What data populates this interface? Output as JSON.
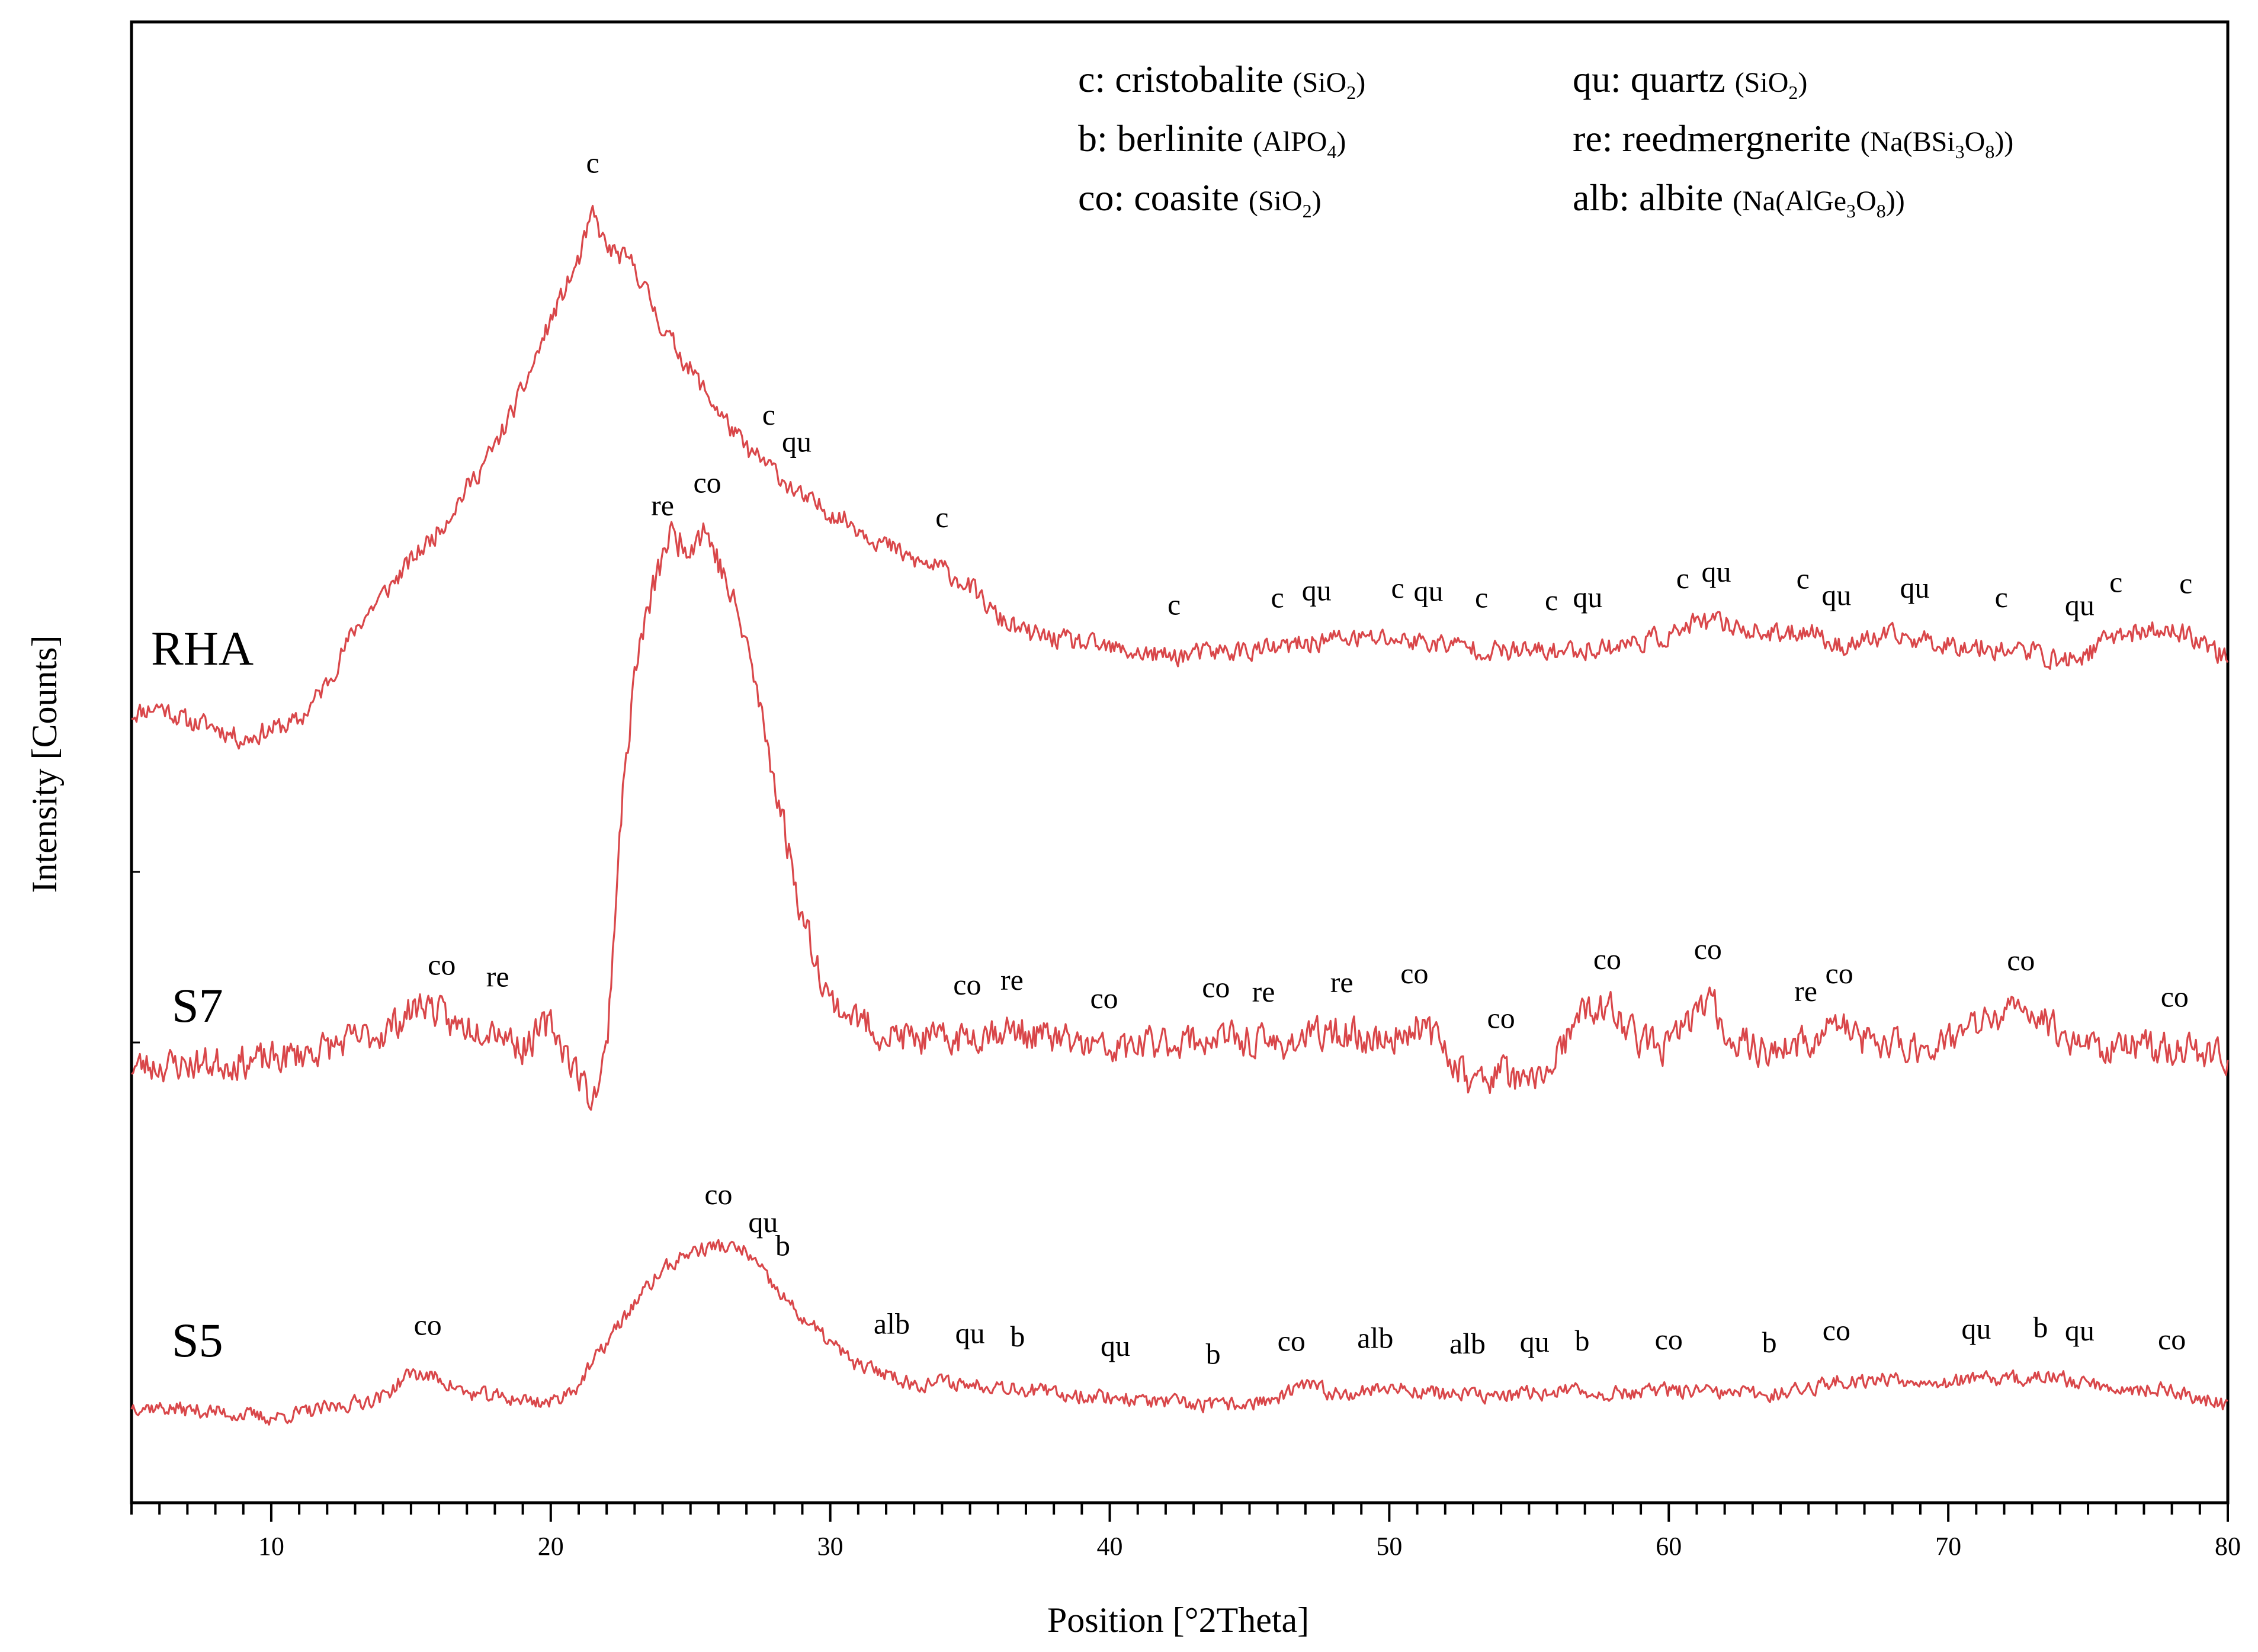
{
  "chart_data": {
    "type": "line",
    "title": "",
    "xlabel": "Position [°2Theta]",
    "ylabel": "Intensity [Counts]",
    "xlim": [
      5,
      80
    ],
    "xticks": [
      10,
      20,
      30,
      40,
      50,
      60,
      70,
      80
    ],
    "y_ticks_shown": false,
    "grid": false,
    "line_color": "#d9474a",
    "legend_entries": [
      {
        "abbr": "c",
        "name": "cristobalite",
        "formula": "(SiO",
        "sub": "2",
        "tail": ")"
      },
      {
        "abbr": "b",
        "name": "berlinite",
        "formula": "(AlPO",
        "sub": "4",
        "tail": ")"
      },
      {
        "abbr": "co",
        "name": "coasite",
        "formula": "(SiO",
        "sub": "2",
        "tail": ")"
      },
      {
        "abbr": "qu",
        "name": "quartz",
        "formula": "(SiO",
        "sub": "2",
        "tail": ")"
      },
      {
        "abbr": "re",
        "name": "reedmergnerite",
        "formula": "(Na(BSi",
        "sub": "3",
        "mid": "O",
        "sub2": "8",
        "tail": "))"
      },
      {
        "abbr": "alb",
        "name": "albite",
        "formula": "(Na(AlGe",
        "sub": "3",
        "mid": "O",
        "sub2": "8",
        "tail": "))"
      }
    ],
    "series": [
      {
        "name": "RHA",
        "label": "RHA",
        "noise": 0.55,
        "seed": 11,
        "profile": [
          [
            5,
            10.3
          ],
          [
            6,
            10.6
          ],
          [
            7,
            10.0
          ],
          [
            8,
            9.8
          ],
          [
            9,
            9.3
          ],
          [
            10,
            9.7
          ],
          [
            11,
            10.0
          ],
          [
            12,
            11.5
          ],
          [
            13,
            13.6
          ],
          [
            14,
            14.9
          ],
          [
            15,
            16.2
          ],
          [
            16,
            17.4
          ],
          [
            17,
            19.0
          ],
          [
            18,
            20.6
          ],
          [
            19,
            22.8
          ],
          [
            20,
            25.5
          ],
          [
            21,
            27.8
          ],
          [
            21.5,
            29.6
          ],
          [
            22,
            28.3
          ],
          [
            23,
            27.6
          ],
          [
            24,
            25.2
          ],
          [
            25,
            23.6
          ],
          [
            26,
            22.0
          ],
          [
            27,
            20.5
          ],
          [
            28,
            19.7
          ],
          [
            29,
            18.6
          ],
          [
            30,
            18.1
          ],
          [
            31,
            17.5
          ],
          [
            32,
            16.8
          ],
          [
            33,
            16.2
          ],
          [
            34,
            15.9
          ],
          [
            35,
            15.2
          ],
          [
            36,
            14.0
          ],
          [
            37,
            13.4
          ],
          [
            38,
            13.2
          ],
          [
            40,
            12.8
          ],
          [
            42,
            12.5
          ],
          [
            44,
            12.7
          ],
          [
            46,
            12.8
          ],
          [
            48,
            13.2
          ],
          [
            50,
            13.2
          ],
          [
            52,
            13.0
          ],
          [
            54,
            12.7
          ],
          [
            56,
            12.7
          ],
          [
            58,
            12.9
          ],
          [
            60,
            13.3
          ],
          [
            61,
            13.8
          ],
          [
            62,
            13.8
          ],
          [
            63,
            13.5
          ],
          [
            64,
            13.3
          ],
          [
            65,
            13.6
          ],
          [
            66,
            12.9
          ],
          [
            68,
            13.3
          ],
          [
            70,
            13.0
          ],
          [
            72,
            12.8
          ],
          [
            73,
            12.7
          ],
          [
            74,
            12.3
          ],
          [
            75,
            12.6
          ],
          [
            76,
            13.4
          ],
          [
            78,
            13.5
          ],
          [
            79,
            13.2
          ],
          [
            80,
            12.4
          ]
        ],
        "peaks": [
          {
            "x": 21.5,
            "label": "c"
          },
          {
            "x": 27.8,
            "label": "c"
          },
          {
            "x": 28.8,
            "label": "qu"
          },
          {
            "x": 34.0,
            "label": "c"
          },
          {
            "x": 42.3,
            "label": "c"
          },
          {
            "x": 46.0,
            "label": "c"
          },
          {
            "x": 47.4,
            "label": "qu"
          },
          {
            "x": 50.3,
            "label": "c"
          },
          {
            "x": 51.4,
            "label": "qu"
          },
          {
            "x": 53.3,
            "label": "c"
          },
          {
            "x": 55.8,
            "label": "c"
          },
          {
            "x": 57.1,
            "label": "qu"
          },
          {
            "x": 60.5,
            "label": "c"
          },
          {
            "x": 61.7,
            "label": "qu"
          },
          {
            "x": 64.8,
            "label": "c"
          },
          {
            "x": 66.0,
            "label": "qu"
          },
          {
            "x": 68.8,
            "label": "qu"
          },
          {
            "x": 71.9,
            "label": "c"
          },
          {
            "x": 74.7,
            "label": "qu"
          },
          {
            "x": 76.0,
            "label": "c"
          },
          {
            "x": 78.5,
            "label": "c"
          }
        ]
      },
      {
        "name": "S7",
        "label": "S7",
        "noise": 0.75,
        "seed": 23,
        "profile": [
          [
            5,
            6.5
          ],
          [
            8,
            6.6
          ],
          [
            10,
            6.7
          ],
          [
            12,
            7.1
          ],
          [
            14,
            7.6
          ],
          [
            15.5,
            8.6
          ],
          [
            16.5,
            7.8
          ],
          [
            18,
            7.8
          ],
          [
            19,
            7.1
          ],
          [
            20,
            7.9
          ],
          [
            21,
            6.2
          ],
          [
            21.5,
            5.4
          ],
          [
            22,
            7.0
          ],
          [
            22.5,
            14.5
          ],
          [
            23,
            19.2
          ],
          [
            23.5,
            21.3
          ],
          [
            24.2,
            23.6
          ],
          [
            25,
            23.4
          ],
          [
            25.5,
            23.9
          ],
          [
            26,
            22.8
          ],
          [
            27,
            20.2
          ],
          [
            28,
            15.8
          ],
          [
            29,
            11.3
          ],
          [
            30,
            8.6
          ],
          [
            31,
            8.0
          ],
          [
            32,
            7.5
          ],
          [
            34,
            7.3
          ],
          [
            36,
            7.7
          ],
          [
            38,
            7.4
          ],
          [
            40,
            7.0
          ],
          [
            42,
            7.3
          ],
          [
            44,
            7.4
          ],
          [
            46,
            7.2
          ],
          [
            48,
            7.6
          ],
          [
            50,
            7.3
          ],
          [
            51,
            7.9
          ],
          [
            52,
            7.1
          ],
          [
            53,
            5.9
          ],
          [
            54,
            6.4
          ],
          [
            55,
            5.8
          ],
          [
            56,
            6.8
          ],
          [
            57,
            8.3
          ],
          [
            58,
            8.3
          ],
          [
            59,
            7.3
          ],
          [
            60,
            7.1
          ],
          [
            61,
            8.3
          ],
          [
            61.5,
            8.7
          ],
          [
            62,
            7.6
          ],
          [
            63,
            7.1
          ],
          [
            64,
            7.0
          ],
          [
            65,
            7.3
          ],
          [
            66,
            7.9
          ],
          [
            67,
            7.3
          ],
          [
            68,
            7.2
          ],
          [
            69,
            7.1
          ],
          [
            70,
            7.4
          ],
          [
            71,
            7.8
          ],
          [
            72,
            8.2
          ],
          [
            73,
            8.3
          ],
          [
            74,
            7.6
          ],
          [
            75,
            7.2
          ],
          [
            76,
            7.1
          ],
          [
            78,
            7.1
          ],
          [
            80,
            6.8
          ]
        ],
        "peaks": [
          {
            "x": 16.1,
            "label": "co"
          },
          {
            "x": 18.1,
            "label": "re"
          },
          {
            "x": 24.0,
            "label": "re"
          },
          {
            "x": 25.6,
            "label": "co"
          },
          {
            "x": 34.9,
            "label": "co"
          },
          {
            "x": 36.5,
            "label": "re"
          },
          {
            "x": 39.8,
            "label": "co"
          },
          {
            "x": 43.8,
            "label": "co"
          },
          {
            "x": 45.5,
            "label": "re"
          },
          {
            "x": 48.3,
            "label": "re"
          },
          {
            "x": 50.9,
            "label": "co"
          },
          {
            "x": 54.0,
            "label": "co"
          },
          {
            "x": 57.8,
            "label": "co"
          },
          {
            "x": 61.4,
            "label": "co"
          },
          {
            "x": 64.9,
            "label": "re"
          },
          {
            "x": 66.1,
            "label": "co"
          },
          {
            "x": 72.6,
            "label": "co"
          },
          {
            "x": 78.1,
            "label": "co"
          }
        ]
      },
      {
        "name": "S5",
        "label": "S5",
        "noise": 0.35,
        "seed": 37,
        "profile": [
          [
            5,
            1.7
          ],
          [
            8,
            1.5
          ],
          [
            10,
            1.3
          ],
          [
            12,
            1.6
          ],
          [
            14,
            2.0
          ],
          [
            15,
            2.8
          ],
          [
            16,
            2.6
          ],
          [
            17,
            2.1
          ],
          [
            19,
            1.9
          ],
          [
            20,
            1.8
          ],
          [
            21,
            2.4
          ],
          [
            22,
            3.8
          ],
          [
            23,
            5.1
          ],
          [
            24,
            6.2
          ],
          [
            25,
            6.8
          ],
          [
            26,
            7.0
          ],
          [
            27,
            6.8
          ],
          [
            28,
            5.6
          ],
          [
            29,
            4.6
          ],
          [
            30,
            3.8
          ],
          [
            31,
            3.0
          ],
          [
            32,
            2.8
          ],
          [
            33,
            2.4
          ],
          [
            34,
            2.5
          ],
          [
            35,
            2.4
          ],
          [
            36,
            2.4
          ],
          [
            38,
            2.1
          ],
          [
            40,
            2.0
          ],
          [
            42,
            1.8
          ],
          [
            44,
            1.7
          ],
          [
            46,
            1.9
          ],
          [
            47,
            2.4
          ],
          [
            48,
            2.1
          ],
          [
            50,
            2.3
          ],
          [
            52,
            2.1
          ],
          [
            54,
            2.0
          ],
          [
            56,
            2.2
          ],
          [
            58,
            2.1
          ],
          [
            60,
            2.2
          ],
          [
            62,
            2.1
          ],
          [
            64,
            2.1
          ],
          [
            66,
            2.5
          ],
          [
            68,
            2.6
          ],
          [
            70,
            2.5
          ],
          [
            72,
            2.6
          ],
          [
            74,
            2.6
          ],
          [
            76,
            2.3
          ],
          [
            78,
            2.2
          ],
          [
            80,
            1.7
          ]
        ],
        "peaks": [
          {
            "x": 15.6,
            "label": "co"
          },
          {
            "x": 26.0,
            "label": "co"
          },
          {
            "x": 27.6,
            "label": "qu"
          },
          {
            "x": 28.3,
            "label": "b"
          },
          {
            "x": 32.2,
            "label": "alb"
          },
          {
            "x": 35.0,
            "label": "qu"
          },
          {
            "x": 36.7,
            "label": "b"
          },
          {
            "x": 40.2,
            "label": "qu"
          },
          {
            "x": 43.7,
            "label": "b"
          },
          {
            "x": 46.5,
            "label": "co"
          },
          {
            "x": 49.5,
            "label": "alb"
          },
          {
            "x": 52.8,
            "label": "alb"
          },
          {
            "x": 55.2,
            "label": "qu"
          },
          {
            "x": 56.9,
            "label": "b"
          },
          {
            "x": 60.0,
            "label": "co"
          },
          {
            "x": 63.6,
            "label": "b"
          },
          {
            "x": 66.0,
            "label": "co"
          },
          {
            "x": 71.0,
            "label": "qu"
          },
          {
            "x": 73.3,
            "label": "b"
          },
          {
            "x": 74.7,
            "label": "qu"
          },
          {
            "x": 78.0,
            "label": "co"
          }
        ]
      }
    ]
  }
}
